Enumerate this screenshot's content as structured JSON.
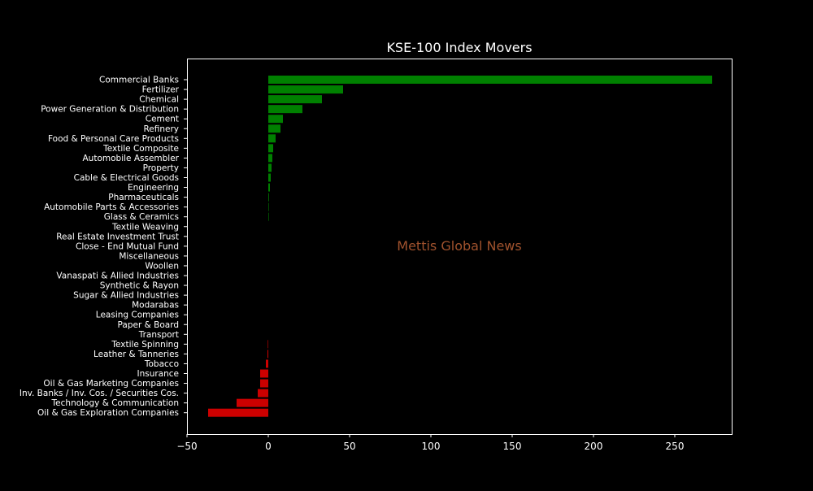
{
  "chart_data": {
    "type": "bar",
    "orientation": "horizontal",
    "title": "KSE-100 Index Movers",
    "watermark": "Mettis Global News",
    "xlabel": "",
    "ylabel": "",
    "xlim": [
      -50,
      285
    ],
    "xticks": [
      -50,
      0,
      50,
      100,
      150,
      200,
      250
    ],
    "grid": false,
    "colors": {
      "background": "#000000",
      "positive": "#008000",
      "negative": "#cc0000",
      "text": "#ffffff",
      "watermark": "#a0522d"
    },
    "categories": [
      "Commercial Banks",
      "Fertilizer",
      "Chemical",
      "Power Generation & Distribution",
      "Cement",
      "Refinery",
      "Food & Personal Care Products",
      "Textile Composite",
      "Automobile Assembler",
      "Property",
      "Cable & Electrical Goods",
      "Engineering",
      "Pharmaceuticals",
      "Automobile Parts & Accessories",
      "Glass & Ceramics",
      "Textile Weaving",
      "Real Estate Investment Trust",
      "Close - End Mutual Fund",
      "Miscellaneous",
      "Woollen",
      "Vanaspati & Allied Industries",
      "Synthetic & Rayon",
      "Sugar & Allied Industries",
      "Modarabas",
      "Leasing Companies",
      "Paper & Board",
      "Transport",
      "Textile Spinning",
      "Leather & Tanneries",
      "Tobacco",
      "Insurance",
      "Oil & Gas Marketing Companies",
      "Inv. Banks / Inv. Cos. / Securities Cos.",
      "Technology & Communication",
      "Oil & Gas Exploration Companies"
    ],
    "values": [
      273,
      46,
      33,
      21,
      9,
      7.5,
      4.5,
      3,
      2.5,
      2,
      1.5,
      1,
      0.4,
      0.3,
      0.2,
      0,
      0,
      0,
      0,
      0,
      0,
      0,
      0,
      0,
      0,
      0,
      0,
      -0.3,
      -0.5,
      -1.5,
      -5,
      -5,
      -6.5,
      -19.5,
      -37
    ]
  }
}
